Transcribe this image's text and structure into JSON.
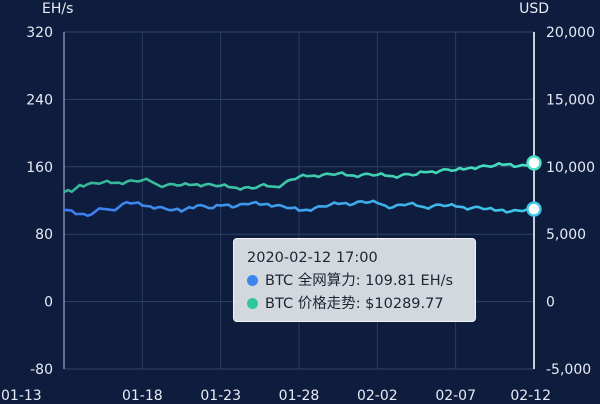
{
  "chart_data": {
    "type": "line",
    "left_axis": {
      "unit": "EH/s",
      "min": -80,
      "max": 320,
      "ticks": [
        "-80",
        "0",
        "80",
        "160",
        "240",
        "320"
      ]
    },
    "right_axis": {
      "unit": "USD",
      "min": -5000,
      "max": 20000,
      "ticks": [
        "-5,000",
        "0",
        "5,000",
        "10,000",
        "15,000",
        "20,000"
      ]
    },
    "x_axis": {
      "ticks": [
        "01-13",
        "01-18",
        "01-23",
        "01-28",
        "02-02",
        "02-07",
        "02-12"
      ]
    },
    "grid": true,
    "series": [
      {
        "name": "BTC 全网算力",
        "axis": "left",
        "color": "#3d7bf0",
        "color_end": "#3ec8e8",
        "x": [
          "01-13",
          "01-13 12h",
          "01-14",
          "01-14 12h",
          "01-15",
          "01-15 12h",
          "01-16",
          "01-16 12h",
          "01-17",
          "01-17 12h",
          "01-18",
          "01-18 12h",
          "01-19",
          "01-19 12h",
          "01-20",
          "01-20 12h",
          "01-21",
          "01-21 12h",
          "01-22",
          "01-22 12h",
          "01-23",
          "01-23 12h",
          "01-24",
          "01-24 12h",
          "01-25",
          "01-25 12h",
          "01-26",
          "01-26 12h",
          "01-27",
          "01-27 12h",
          "01-28",
          "01-28 12h",
          "01-29",
          "01-29 12h",
          "01-30",
          "01-30 12h",
          "01-31",
          "01-31 12h",
          "02-01",
          "02-01 12h",
          "02-02",
          "02-02 12h",
          "02-03",
          "02-03 12h",
          "02-04",
          "02-04 12h",
          "02-05",
          "02-05 12h",
          "02-06",
          "02-06 12h",
          "02-07",
          "02-07 12h",
          "02-08",
          "02-08 12h",
          "02-09",
          "02-09 12h",
          "02-10",
          "02-10 12h",
          "02-11",
          "02-11 12h",
          "02-12 17:00"
        ],
        "values": [
          109,
          108,
          104,
          102,
          107,
          110,
          109,
          112,
          118,
          117,
          114,
          113,
          112,
          110,
          109,
          107,
          112,
          114,
          113,
          111,
          114,
          115,
          113,
          116,
          117,
          115,
          116,
          114,
          113,
          111,
          108,
          109,
          111,
          113,
          115,
          116,
          117,
          116,
          119,
          118,
          117,
          114,
          112,
          115,
          116,
          114,
          112,
          113,
          115,
          114,
          113,
          112,
          111,
          112,
          110,
          108,
          109,
          107,
          108,
          109,
          109.81
        ]
      },
      {
        "name": "BTC 价格走势",
        "axis": "right",
        "color": "#36b496",
        "color_end": "#46e0c2",
        "x": [
          "01-13",
          "01-13 12h",
          "01-14",
          "01-14 12h",
          "01-15",
          "01-15 12h",
          "01-16",
          "01-16 12h",
          "01-17",
          "01-17 12h",
          "01-18",
          "01-18 12h",
          "01-19",
          "01-19 12h",
          "01-20",
          "01-20 12h",
          "01-21",
          "01-21 12h",
          "01-22",
          "01-22 12h",
          "01-23",
          "01-23 12h",
          "01-24",
          "01-24 12h",
          "01-25",
          "01-25 12h",
          "01-26",
          "01-26 12h",
          "01-27",
          "01-27 12h",
          "01-28",
          "01-28 12h",
          "01-29",
          "01-29 12h",
          "01-30",
          "01-30 12h",
          "01-31",
          "01-31 12h",
          "02-01",
          "02-01 12h",
          "02-02",
          "02-02 12h",
          "02-03",
          "02-03 12h",
          "02-04",
          "02-04 12h",
          "02-05",
          "02-05 12h",
          "02-06",
          "02-06 12h",
          "02-07",
          "02-07 12h",
          "02-08",
          "02-08 12h",
          "02-09",
          "02-09 12h",
          "02-10",
          "02-10 12h",
          "02-11",
          "02-11 12h",
          "02-12 17:00"
        ],
        "values": [
          8120,
          8150,
          8650,
          8700,
          8780,
          8850,
          8800,
          8820,
          8900,
          8950,
          9000,
          8950,
          8650,
          8620,
          8700,
          8640,
          8650,
          8700,
          8680,
          8650,
          8600,
          8500,
          8440,
          8450,
          8400,
          8600,
          8550,
          8520,
          8720,
          9050,
          9250,
          9300,
          9350,
          9400,
          9450,
          9500,
          9380,
          9350,
          9400,
          9450,
          9400,
          9350,
          9300,
          9350,
          9450,
          9420,
          9600,
          9650,
          9700,
          9800,
          9750,
          9800,
          9950,
          10000,
          10050,
          10100,
          10150,
          10200,
          10050,
          10100,
          10289.77
        ]
      }
    ],
    "tooltip": {
      "title": "2020-02-12 17:00",
      "rows": [
        {
          "text": "BTC 全网算力: 109.81 EH/s",
          "color": "#3a86ee"
        },
        {
          "text": "BTC 价格走势: $10289.77",
          "color": "#30c79c"
        }
      ]
    }
  }
}
